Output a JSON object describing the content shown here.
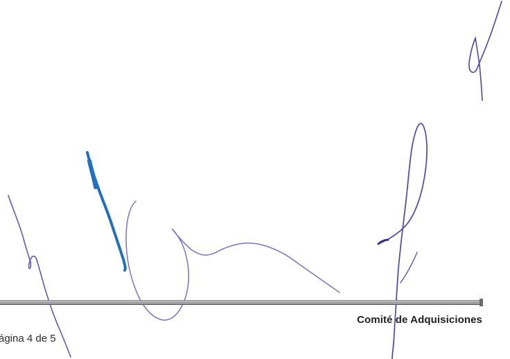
{
  "footer": {
    "committee": "Comité de Adquisiciones",
    "page_label": "ágina 4 de 5"
  },
  "colors": {
    "ink_purple": "#5a4fc4",
    "ink_violet": "#7b6fd0",
    "ink_blue": "#1f6fc2",
    "rule_gray": "#8a8a8a"
  }
}
